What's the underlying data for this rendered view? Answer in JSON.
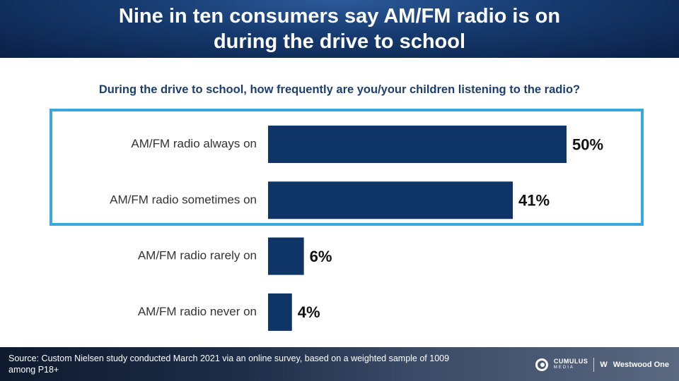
{
  "header": {
    "title_line1": "Nine in ten consumers say AM/FM radio is on",
    "title_line2": "during the drive to school"
  },
  "question": "During the drive to school, how frequently are you/your children listening to the radio?",
  "chart_data": {
    "type": "bar",
    "orientation": "horizontal",
    "categories": [
      "AM/FM radio always on",
      "AM/FM radio sometimes on",
      "AM/FM radio rarely on",
      "AM/FM radio never on"
    ],
    "values": [
      50,
      41,
      6,
      4
    ],
    "data_labels": [
      "50%",
      "41%",
      "6%",
      "4%"
    ],
    "value_unit": "%",
    "bar_color": "#0f3566",
    "highlighted_categories": [
      "AM/FM radio always on",
      "AM/FM radio sometimes on"
    ],
    "highlight_color": "#3aa7dd",
    "grid": false
  },
  "footer": {
    "source": "Source: Custom Nielsen study conducted March 2021 via an online survey, based on a weighted sample of 1009 among P18+",
    "logo_cumulus": "CUMULUS",
    "logo_cumulus_sub": "MEDIA",
    "logo_westwood": "Westwood One"
  }
}
